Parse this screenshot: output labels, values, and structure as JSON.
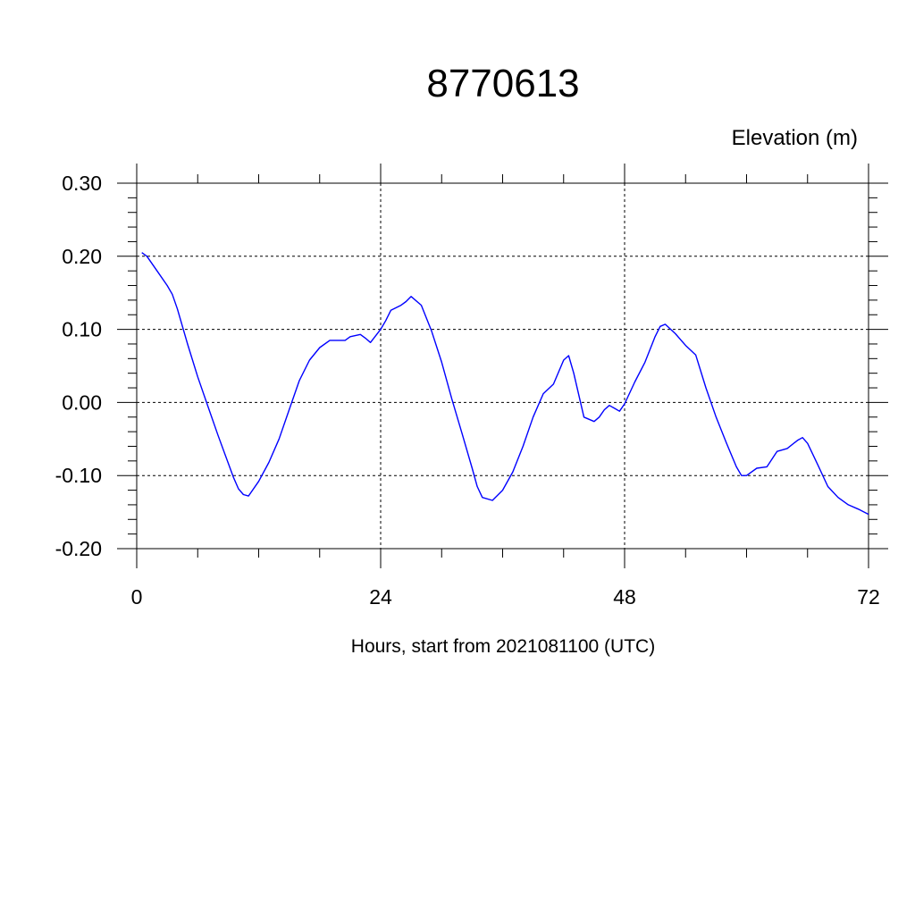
{
  "chart_data": {
    "type": "line",
    "title": "8770613",
    "ylabel": "Elevation (m)",
    "xlabel": "Hours, start from 2021081100 (UTC)",
    "xlim": [
      0,
      72
    ],
    "ylim": [
      -0.2,
      0.3
    ],
    "x_ticks": [
      0,
      24,
      48,
      72
    ],
    "x_tick_labels": [
      "0",
      "24",
      "48",
      "72"
    ],
    "y_ticks": [
      -0.2,
      -0.1,
      0.0,
      0.1,
      0.2,
      0.3
    ],
    "y_tick_labels": [
      "-0.20",
      "-0.10",
      "0.00",
      "0.10",
      "0.20",
      "0.30"
    ],
    "grid": true,
    "colors": {
      "line": "#0000ff",
      "axis": "#000000",
      "grid": "#000000"
    },
    "series": [
      {
        "x": [
          0.5,
          1,
          2,
          3,
          3.5,
          4,
          5,
          6,
          7,
          8,
          9,
          9.5,
          10,
          10.5,
          11,
          12,
          13,
          14,
          15,
          16,
          17,
          18,
          19,
          20,
          20.5,
          21,
          22,
          22.5,
          23,
          24,
          24.5,
          25,
          26,
          26.5,
          27,
          28,
          29,
          30,
          31,
          32,
          33,
          33.5,
          34,
          35,
          36,
          37,
          38,
          39,
          40,
          41,
          42,
          42.5,
          43,
          44,
          45,
          45.5,
          46,
          46.5,
          47,
          47.5,
          48,
          49,
          50,
          51,
          51.5,
          52,
          53,
          54,
          55,
          56,
          57,
          58,
          59,
          59.5,
          60,
          61,
          62,
          63,
          64,
          65,
          65.5,
          66,
          67,
          68,
          69,
          70,
          71,
          72
        ],
        "y": [
          0.205,
          0.2,
          0.18,
          0.16,
          0.148,
          0.128,
          0.08,
          0.035,
          -0.005,
          -0.045,
          -0.083,
          -0.102,
          -0.118,
          -0.126,
          -0.128,
          -0.108,
          -0.082,
          -0.05,
          -0.01,
          0.03,
          0.058,
          0.075,
          0.085,
          0.085,
          0.085,
          0.09,
          0.093,
          0.088,
          0.082,
          0.1,
          0.112,
          0.126,
          0.133,
          0.138,
          0.145,
          0.133,
          0.098,
          0.055,
          0.005,
          -0.042,
          -0.09,
          -0.115,
          -0.13,
          -0.134,
          -0.12,
          -0.095,
          -0.06,
          -0.02,
          0.012,
          0.025,
          0.058,
          0.064,
          0.04,
          -0.02,
          -0.026,
          -0.02,
          -0.01,
          -0.004,
          -0.008,
          -0.012,
          -0.002,
          0.028,
          0.055,
          0.09,
          0.104,
          0.107,
          0.094,
          0.078,
          0.065,
          0.02,
          -0.02,
          -0.055,
          -0.088,
          -0.1,
          -0.1,
          -0.09,
          -0.088,
          -0.067,
          -0.063,
          -0.052,
          -0.048,
          -0.056,
          -0.085,
          -0.115,
          -0.13,
          -0.14,
          -0.146,
          -0.153
        ]
      }
    ]
  }
}
